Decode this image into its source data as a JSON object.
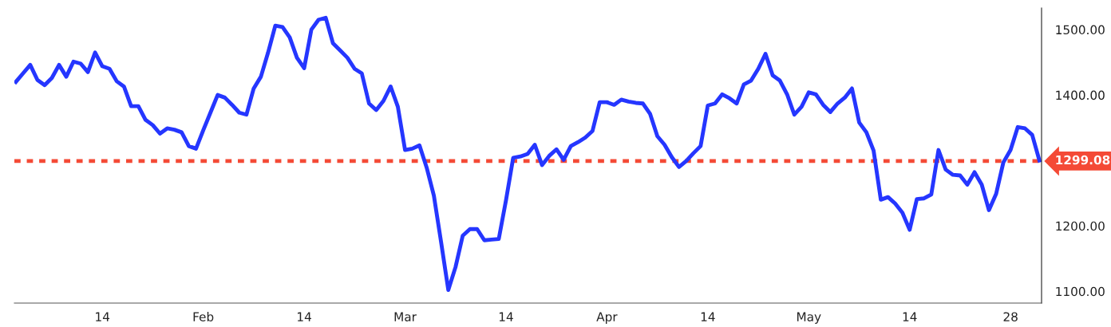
{
  "chart_data": {
    "type": "line",
    "categories": [
      null,
      null,
      null,
      null,
      null,
      null,
      null,
      null,
      null,
      null,
      null,
      null,
      "14",
      null,
      null,
      null,
      null,
      null,
      null,
      null,
      null,
      null,
      null,
      null,
      null,
      null,
      "Feb",
      null,
      null,
      null,
      null,
      null,
      null,
      null,
      null,
      null,
      null,
      null,
      null,
      null,
      "14",
      null,
      null,
      null,
      null,
      null,
      null,
      null,
      null,
      null,
      null,
      null,
      null,
      null,
      "Mar",
      null,
      null,
      null,
      null,
      null,
      null,
      null,
      null,
      null,
      null,
      null,
      null,
      null,
      "14",
      null,
      null,
      null,
      null,
      null,
      null,
      null,
      null,
      null,
      null,
      null,
      null,
      null,
      "Apr",
      null,
      null,
      null,
      null,
      null,
      null,
      null,
      null,
      null,
      null,
      null,
      null,
      null,
      "14",
      null,
      null,
      null,
      null,
      null,
      null,
      null,
      null,
      null,
      null,
      null,
      null,
      null,
      "May",
      null,
      null,
      null,
      null,
      null,
      null,
      null,
      null,
      null,
      null,
      null,
      null,
      null,
      "14",
      null,
      null,
      null,
      null,
      null,
      null,
      null,
      null,
      null,
      null,
      null,
      null,
      null,
      "28",
      null,
      null,
      null,
      null
    ],
    "series": [
      {
        "color": "#2536ff",
        "values": [
          1420,
          1433,
          1446,
          1423,
          1415,
          1426,
          1446,
          1428,
          1451,
          1448,
          1435,
          1465,
          1444,
          1440,
          1421,
          1413,
          1383,
          1383,
          1362,
          1354,
          1341,
          1349,
          1347,
          1343,
          1322,
          1318,
          1346,
          1373,
          1400,
          1396,
          1385,
          1373,
          1370,
          1410,
          1428,
          1465,
          1506,
          1504,
          1488,
          1457,
          1441,
          1500,
          1515,
          1518,
          1479,
          1468,
          1457,
          1440,
          1433,
          1387,
          1377,
          1391,
          1413,
          1382,
          1316,
          1318,
          1323,
          1289,
          1246,
          1175,
          1102,
          1137,
          1185,
          1195,
          1195,
          1178,
          1179,
          1180,
          1239,
          1304,
          1306,
          1310,
          1324,
          1293,
          1307,
          1317,
          1301,
          1322,
          1328,
          1335,
          1345,
          1389,
          1389,
          1385,
          1393,
          1390,
          1388,
          1387,
          1371,
          1337,
          1324,
          1305,
          1290,
          1299,
          1311,
          1322,
          1384,
          1387,
          1401,
          1395,
          1387,
          1416,
          1422,
          1440,
          1463,
          1430,
          1422,
          1401,
          1370,
          1382,
          1404,
          1401,
          1385,
          1374,
          1387,
          1396,
          1410,
          1358,
          1343,
          1315,
          1240,
          1244,
          1234,
          1220,
          1194,
          1241,
          1242,
          1248,
          1316,
          1286,
          1278,
          1277,
          1263,
          1282,
          1263,
          1224,
          1249,
          1297,
          1316,
          1351,
          1349,
          1339,
          1300
        ]
      }
    ],
    "ylim": [
      1082,
      1533
    ],
    "yticks": [
      {
        "value": 1100,
        "label": "1100.00"
      },
      {
        "value": 1200,
        "label": "1200.00"
      },
      {
        "value": 1400,
        "label": "1400.00"
      },
      {
        "value": 1500,
        "label": "1500.00"
      }
    ],
    "ref_lines": [
      {
        "axis": "y",
        "value": 1299.08,
        "label": "1299.08",
        "color": "#f44a36",
        "line_style": "dotted"
      }
    ],
    "grid": false,
    "marker": "none",
    "line_style": "solid"
  }
}
